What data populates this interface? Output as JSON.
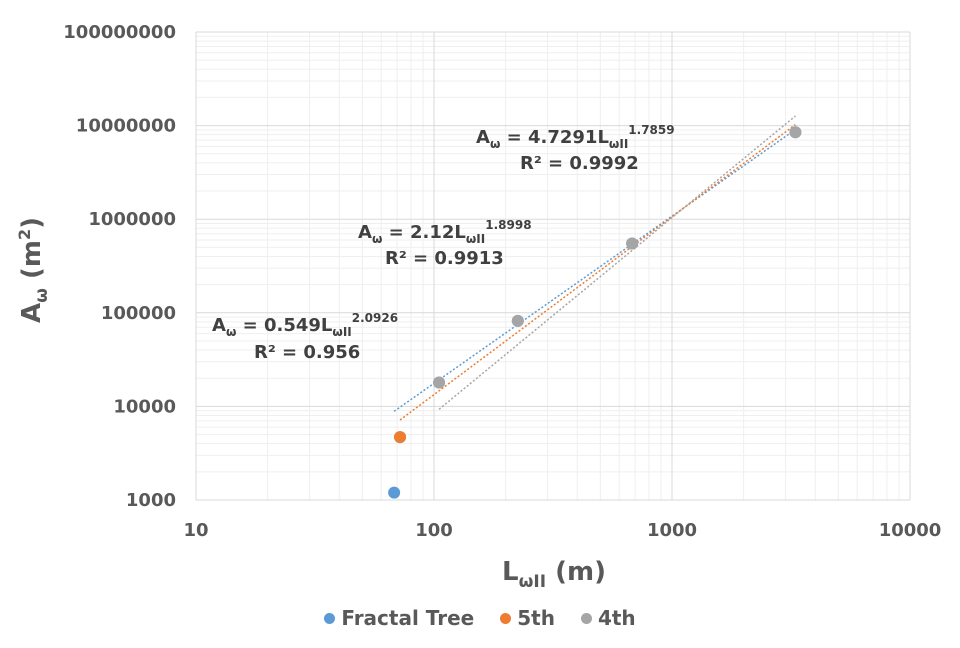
{
  "chart_data": {
    "type": "scatter",
    "x_axis": {
      "label_main": "L",
      "label_sub": "ωII",
      "label_unit": " (m)",
      "scale": "log",
      "range": [
        10,
        10000
      ],
      "ticks": [
        "10",
        "100",
        "1000",
        "10000"
      ]
    },
    "y_axis": {
      "label_main": "A",
      "label_sub": "ω",
      "label_unit_pre": " (m",
      "label_unit_sup": "2",
      "label_unit_post": ")",
      "scale": "log",
      "range": [
        1000,
        100000000
      ],
      "ticks": [
        "1000",
        "10000",
        "100000",
        "1000000",
        "10000000",
        "100000000"
      ]
    },
    "grid": true,
    "legend_position": "bottom",
    "series": [
      {
        "name": "Fractal Tree",
        "color": "#5B9BD5",
        "points": [
          [
            68,
            1200
          ],
          [
            72,
            4700
          ],
          [
            105,
            18000
          ],
          [
            225,
            82000
          ],
          [
            680,
            550000
          ],
          [
            3300,
            8500000
          ]
        ],
        "trendline": {
          "a": 4.7291,
          "b": 1.7859,
          "x_range": [
            68,
            3250
          ]
        }
      },
      {
        "name": "5th",
        "color": "#ED7D31",
        "points": [
          [
            72,
            4700
          ]
        ],
        "trendline": {
          "a": 2.12,
          "b": 1.8998,
          "x_range": [
            72,
            3300
          ]
        }
      },
      {
        "name": "4th",
        "color": "#A5A5A5",
        "points": [
          [
            105,
            18000
          ],
          [
            225,
            82000
          ],
          [
            680,
            550000
          ],
          [
            3300,
            8500000
          ]
        ],
        "trendline": {
          "a": 0.549,
          "b": 2.0926,
          "x_range": [
            105,
            3300
          ]
        }
      }
    ],
    "annotations": [
      {
        "lhs": "A",
        "lhs_sub": "ω",
        "mid": " = 4.7291L",
        "mid_sub": "ωII",
        "exp": "1.7859",
        "r2": "R² = 0.9992"
      },
      {
        "lhs": "A",
        "lhs_sub": "ω",
        "mid": " = 2.12L",
        "mid_sub": "ωII",
        "exp": "1.8998",
        "r2": "R² = 0.9913"
      },
      {
        "lhs": "A",
        "lhs_sub": "ω",
        "mid": " = 0.549L",
        "mid_sub": "ωII",
        "exp": "2.0926",
        "r2": "R² = 0.956"
      }
    ]
  }
}
